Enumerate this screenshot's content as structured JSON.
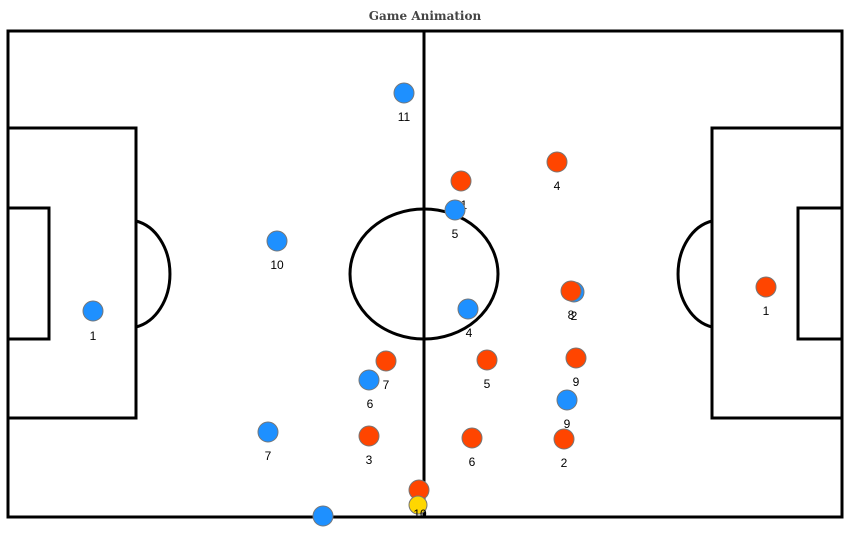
{
  "title": "Game Animation",
  "colors": {
    "blue_team": "#1E90FF",
    "red_team": "#FF4500",
    "ball": "#FFD700",
    "lines": "#000000"
  },
  "blue_team": [
    {
      "number": "11"
    },
    {
      "number": "10"
    },
    {
      "number": "1"
    },
    {
      "number": "5"
    },
    {
      "number": "4"
    },
    {
      "number": "6"
    },
    {
      "number": "7"
    },
    {
      "number": "2"
    },
    {
      "number": "9"
    },
    {
      "number": ""
    }
  ],
  "red_team": [
    {
      "number": "11"
    },
    {
      "number": "4"
    },
    {
      "number": "8"
    },
    {
      "number": "1"
    },
    {
      "number": "7"
    },
    {
      "number": "5"
    },
    {
      "number": "9"
    },
    {
      "number": "3"
    },
    {
      "number": "6"
    },
    {
      "number": "2"
    },
    {
      "number": "10"
    }
  ],
  "ball": {
    "icon": "ball-icon"
  }
}
